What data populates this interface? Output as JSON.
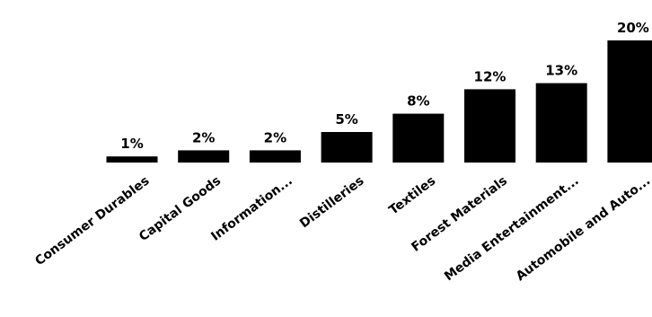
{
  "chart_data": {
    "type": "bar",
    "categories": [
      "Consumer Durables",
      "Capital Goods",
      "Information...",
      "Distilleries",
      "Textiles",
      "Forest Materials",
      "Media Entertainment...",
      "Automobile and Auto..."
    ],
    "values": [
      1,
      2,
      2,
      5,
      8,
      12,
      13,
      20
    ],
    "value_labels": [
      "1%",
      "2%",
      "2%",
      "5%",
      "8%",
      "12%",
      "13%",
      "20%"
    ],
    "ylim": [
      0,
      20
    ],
    "grid": false,
    "bar_color": "#000000",
    "text_color": "#000000"
  }
}
